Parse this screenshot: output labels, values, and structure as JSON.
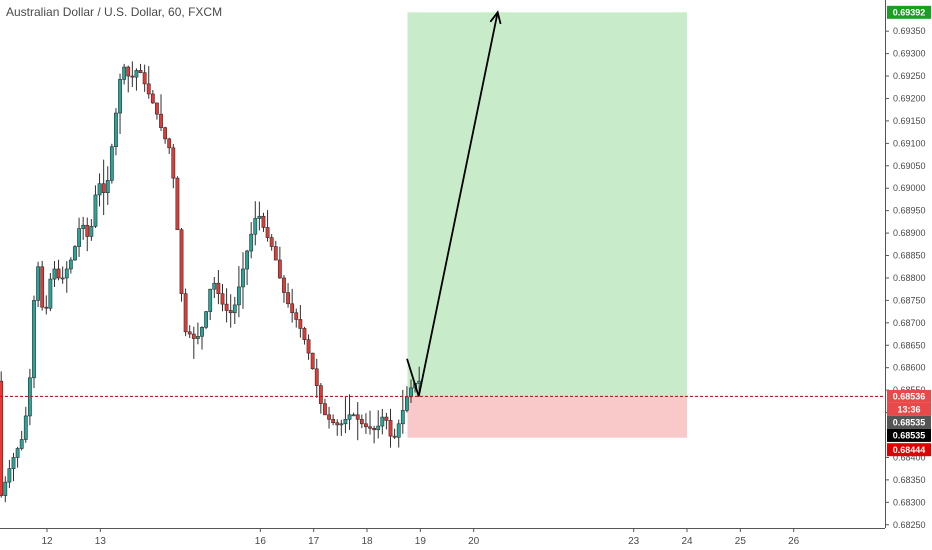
{
  "chart_data": {
    "type": "candlestick",
    "title": "Australian Dollar / U.S. Dollar, 60, FXCM",
    "ylim": [
      0.68245,
      0.69415
    ],
    "y_ticks": [
      "0.69350",
      "0.69300",
      "0.69250",
      "0.69200",
      "0.69150",
      "0.69100",
      "0.69050",
      "0.69000",
      "0.68950",
      "0.68900",
      "0.68850",
      "0.68800",
      "0.68750",
      "0.68700",
      "0.68650",
      "0.68600",
      "0.68550",
      "0.68500",
      "0.68400",
      "0.68350",
      "0.68300",
      "0.68250"
    ],
    "x_ticks": [
      "12",
      "13",
      "16",
      "17",
      "18",
      "19",
      "20",
      "23",
      "24",
      "25",
      "26"
    ],
    "candle_count": 103,
    "price_path": [
      [
        0,
        0.683
      ],
      [
        3,
        0.6839
      ],
      [
        6,
        0.6845
      ],
      [
        8,
        0.6862
      ],
      [
        9,
        0.6888
      ],
      [
        10,
        0.6877
      ],
      [
        11,
        0.687
      ],
      [
        13,
        0.6883
      ],
      [
        15,
        0.6879
      ],
      [
        18,
        0.6885
      ],
      [
        20,
        0.6893
      ],
      [
        22,
        0.6888
      ],
      [
        24,
        0.6902
      ],
      [
        26,
        0.6898
      ],
      [
        28,
        0.6913
      ],
      [
        30,
        0.6928
      ],
      [
        32,
        0.6924
      ],
      [
        34,
        0.6927
      ],
      [
        36,
        0.6922
      ],
      [
        38,
        0.6918
      ],
      [
        40,
        0.6912
      ],
      [
        42,
        0.6908
      ],
      [
        44,
        0.6885
      ],
      [
        45,
        0.6868
      ],
      [
        46,
        0.6868
      ],
      [
        48,
        0.6866
      ],
      [
        50,
        0.687
      ],
      [
        52,
        0.688
      ],
      [
        55,
        0.6873
      ],
      [
        57,
        0.6872
      ],
      [
        59,
        0.688
      ],
      [
        61,
        0.6888
      ],
      [
        63,
        0.6895
      ],
      [
        65,
        0.689
      ],
      [
        67,
        0.6886
      ],
      [
        69,
        0.6878
      ],
      [
        71,
        0.6873
      ],
      [
        73,
        0.687
      ],
      [
        75,
        0.6865
      ],
      [
        77,
        0.6858
      ],
      [
        79,
        0.685
      ],
      [
        81,
        0.6848
      ],
      [
        83,
        0.6847
      ],
      [
        86,
        0.685
      ],
      [
        89,
        0.6847
      ],
      [
        92,
        0.6846
      ],
      [
        94,
        0.685
      ],
      [
        96,
        0.6843
      ],
      [
        98,
        0.6849
      ],
      [
        100,
        0.6855
      ],
      [
        102,
        0.6857
      ]
    ],
    "current_price": "0.68536",
    "countdown": "13:36",
    "price_labels": {
      "take_profit": "0.69392",
      "entry": "0.68536",
      "marker_1": "0.68535",
      "marker_2": "0.68535",
      "stop_loss": "0.68444"
    },
    "position": {
      "type": "long",
      "entry": 0.68536,
      "take_profit": 0.69392,
      "stop_loss": 0.68444,
      "start_day": 18.75,
      "end_day": 24
    },
    "arrow_path": [
      [
        18.75,
        0.6862
      ],
      [
        18.97,
        0.68536
      ],
      [
        20.45,
        0.69392
      ]
    ]
  },
  "colors": {
    "up": "#26a69a",
    "down": "#e53935",
    "candle_body": "#2e2e2e",
    "profit_zone": "#c8ebc9",
    "loss_zone": "#f9c9c9",
    "tp_badge": "#1b9e24",
    "sl_badge": "#e00000",
    "entry_badge": "#e84a4a",
    "black_badge": "#000000",
    "gray_badge": "#555555",
    "dashed_line": "#c21b1b"
  }
}
